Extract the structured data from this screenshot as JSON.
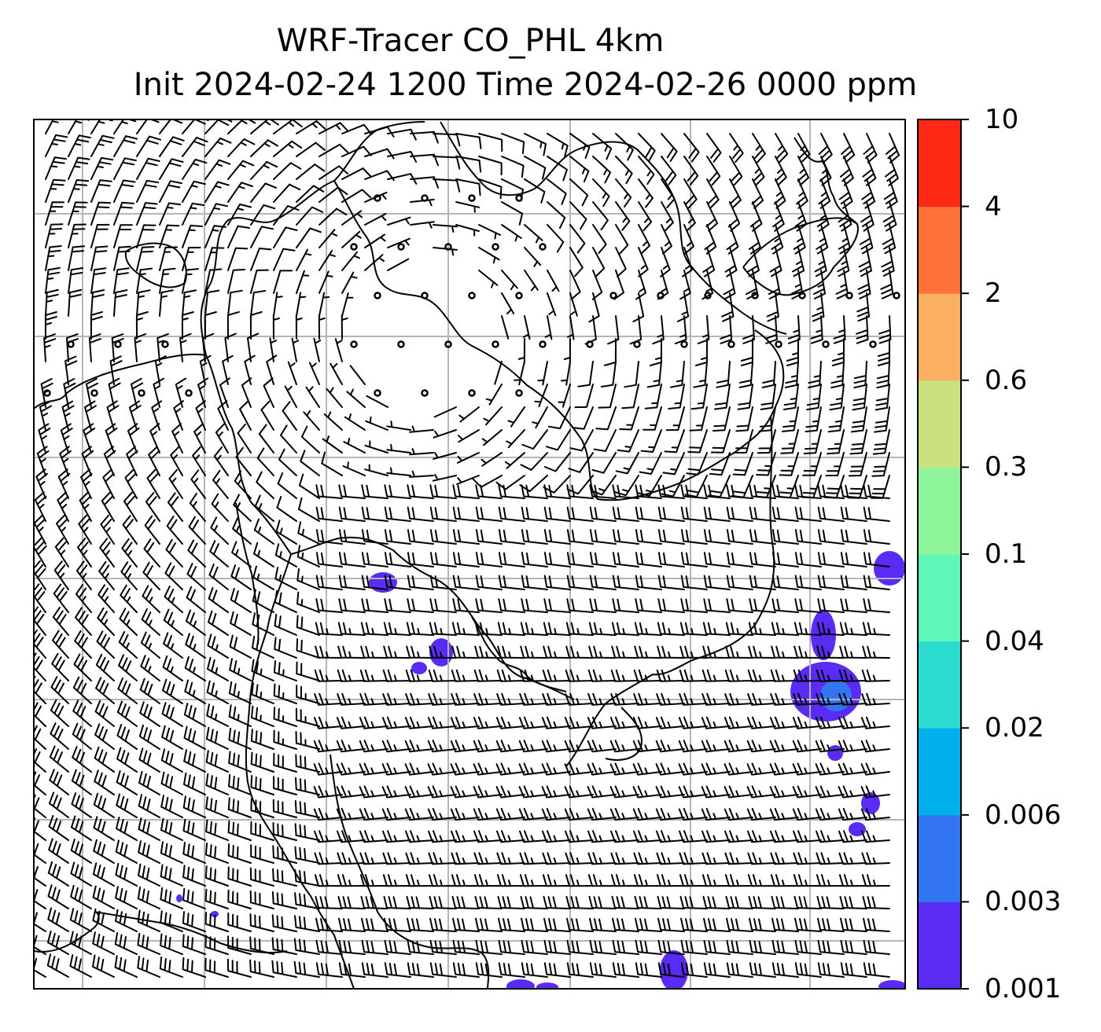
{
  "title": {
    "line1": "WRF-Tracer CO_PHL 4km",
    "line2": "Init 2024-02-24 1200 Time 2024-02-26 0000 ppm"
  },
  "colorbar": {
    "levels": [
      "0.001",
      "0.003",
      "0.006",
      "0.02",
      "0.04",
      "0.1",
      "0.3",
      "0.6",
      "2",
      "4",
      "10"
    ],
    "colors": [
      "#5b2bf6",
      "#3375f0",
      "#00b0ec",
      "#2ddcd0",
      "#5ef7b8",
      "#8ef59a",
      "#cbe07e",
      "#fbb062",
      "#ff7239",
      "#ff2a16"
    ]
  },
  "map": {
    "gridlines": "on",
    "gridline_color": "#b5b5b5",
    "coastline_color": "#000000",
    "wind_barb_color": "#000000",
    "calm_marker": "circle"
  },
  "chart_data": {
    "type": "heatmap",
    "variable": "CO_PHL",
    "units": "ppm",
    "levels": [
      0.001,
      0.003,
      0.006,
      0.02,
      0.04,
      0.1,
      0.3,
      0.6,
      2,
      4,
      10
    ],
    "plume_max_level": "0.003-0.006",
    "overlay": "wind barbs"
  }
}
